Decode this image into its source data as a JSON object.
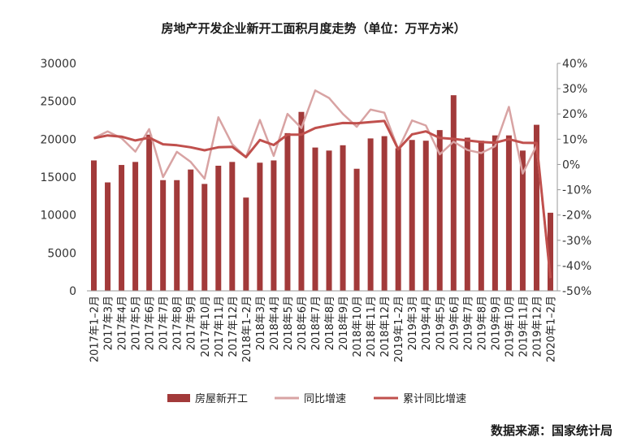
{
  "chart_data": {
    "type": "bar+line",
    "title": "房地产开发企业新开工面积月度走势（单位：万平方米）",
    "source": "数据来源：国家统计局",
    "categories": [
      "2017年1–2月",
      "2017年3月",
      "2017年4月",
      "2017年5月",
      "2017年6月",
      "2017年7月",
      "2017年8月",
      "2017年9月",
      "2017年10月",
      "2017年11月",
      "2017年12月",
      "2018年1–2月",
      "2018年3月",
      "2018年4月",
      "2018年5月",
      "2018年6月",
      "2018年7月",
      "2018年8月",
      "2018年9月",
      "2018年10月",
      "2018年11月",
      "2018年12月",
      "2019年1–2月",
      "2019年3月",
      "2019年4月",
      "2019年5月",
      "2019年6月",
      "2019年7月",
      "2019年8月",
      "2019年9月",
      "2019年10月",
      "2019年11月",
      "2019年12月",
      "2020年1–2月"
    ],
    "left_axis": {
      "ylim": [
        0,
        30000
      ],
      "ticks": [
        "0",
        "5000",
        "10000",
        "15000",
        "20000",
        "25000",
        "30000"
      ]
    },
    "right_axis": {
      "ylim": [
        -50,
        40
      ],
      "ticks": [
        "-50%",
        "-40%",
        "-30%",
        "-20%",
        "-10%",
        "0%",
        "10%",
        "20%",
        "30%",
        "40%"
      ]
    },
    "series": [
      {
        "name": "房屋新开工",
        "type": "bar",
        "axis": "left",
        "color": "#a23a3a",
        "values": [
          17200,
          14300,
          16600,
          17000,
          20600,
          14600,
          14600,
          16000,
          14100,
          16500,
          17000,
          12300,
          16900,
          17200,
          20800,
          23600,
          18900,
          18500,
          19200,
          16100,
          20100,
          20400,
          18800,
          19900,
          19800,
          21200,
          25800,
          20200,
          19800,
          20500,
          20500,
          18500,
          21900,
          10300
        ]
      },
      {
        "name": "同比增速",
        "type": "line",
        "axis": "right",
        "color": "#d8a3a3",
        "values": [
          10.4,
          13.1,
          10.4,
          5.1,
          14.0,
          -5.0,
          5.0,
          1.0,
          -5.6,
          18.7,
          8.0,
          2.9,
          17.6,
          3.4,
          20.0,
          14.4,
          29.3,
          26.3,
          20.0,
          14.9,
          21.7,
          20.5,
          6.0,
          17.4,
          15.4,
          4.0,
          9.0,
          5.7,
          4.5,
          7.2,
          22.8,
          -3.6,
          7.5,
          -44.9
        ]
      },
      {
        "name": "累计同比增速",
        "type": "line",
        "axis": "right",
        "color": "#c0504d",
        "values": [
          10.4,
          11.5,
          11.0,
          9.5,
          10.6,
          8.0,
          7.6,
          6.8,
          5.6,
          6.8,
          7.0,
          2.9,
          9.7,
          7.7,
          11.8,
          11.8,
          14.4,
          15.5,
          16.4,
          16.3,
          16.8,
          17.2,
          6.0,
          11.9,
          13.1,
          10.5,
          10.1,
          9.5,
          8.9,
          8.6,
          10.0,
          8.6,
          8.5,
          -44.9
        ]
      }
    ],
    "legend": {
      "placement": "bottom"
    },
    "grid": false
  }
}
